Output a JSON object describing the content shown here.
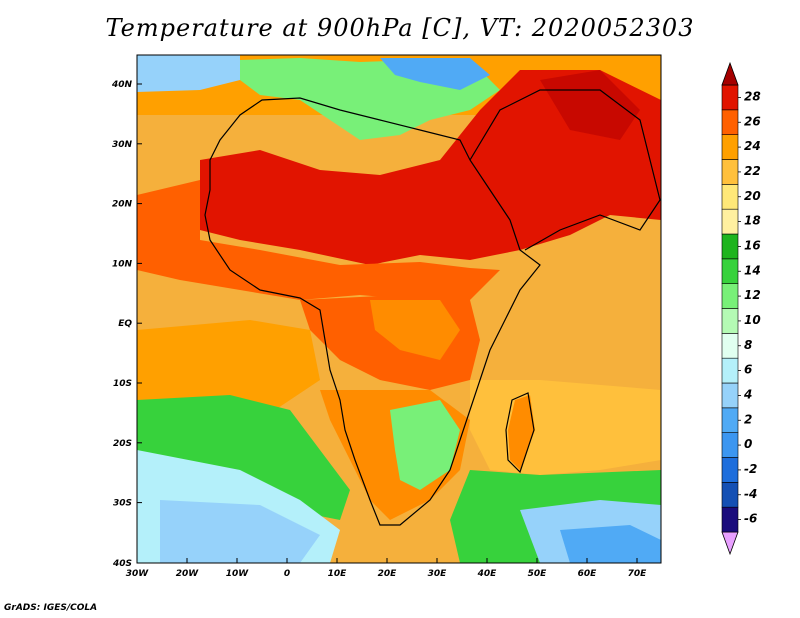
{
  "title": "Temperature at 900hPa [C], VT: 2020052303",
  "credit": "GrADS: IGES/COLA",
  "map": {
    "lat_ticks": [
      "40N",
      "30N",
      "20N",
      "10N",
      "EQ",
      "10S",
      "20S",
      "30S",
      "40S"
    ],
    "lon_ticks": [
      "30W",
      "20W",
      "10W",
      "0",
      "10E",
      "20E",
      "30E",
      "40E",
      "50E",
      "60E",
      "70E"
    ]
  },
  "colorbar": {
    "labels": [
      "28",
      "26",
      "24",
      "22",
      "20",
      "18",
      "16",
      "14",
      "12",
      "10",
      "8",
      "6",
      "4",
      "2",
      "0",
      "-2",
      "-4",
      "-6"
    ],
    "colors": [
      "#e8a0ff",
      "#1a0c7c",
      "#1450b4",
      "#1e6edc",
      "#3c96f0",
      "#50aaf5",
      "#96d2fa",
      "#b4f0fa",
      "#e1fff0",
      "#b4fab4",
      "#78f078",
      "#37d23c",
      "#1eb41e",
      "#fff0a0",
      "#ffe878",
      "#ffc03c",
      "#ffa000",
      "#ff6000",
      "#e11400",
      "#a50000"
    ]
  }
}
